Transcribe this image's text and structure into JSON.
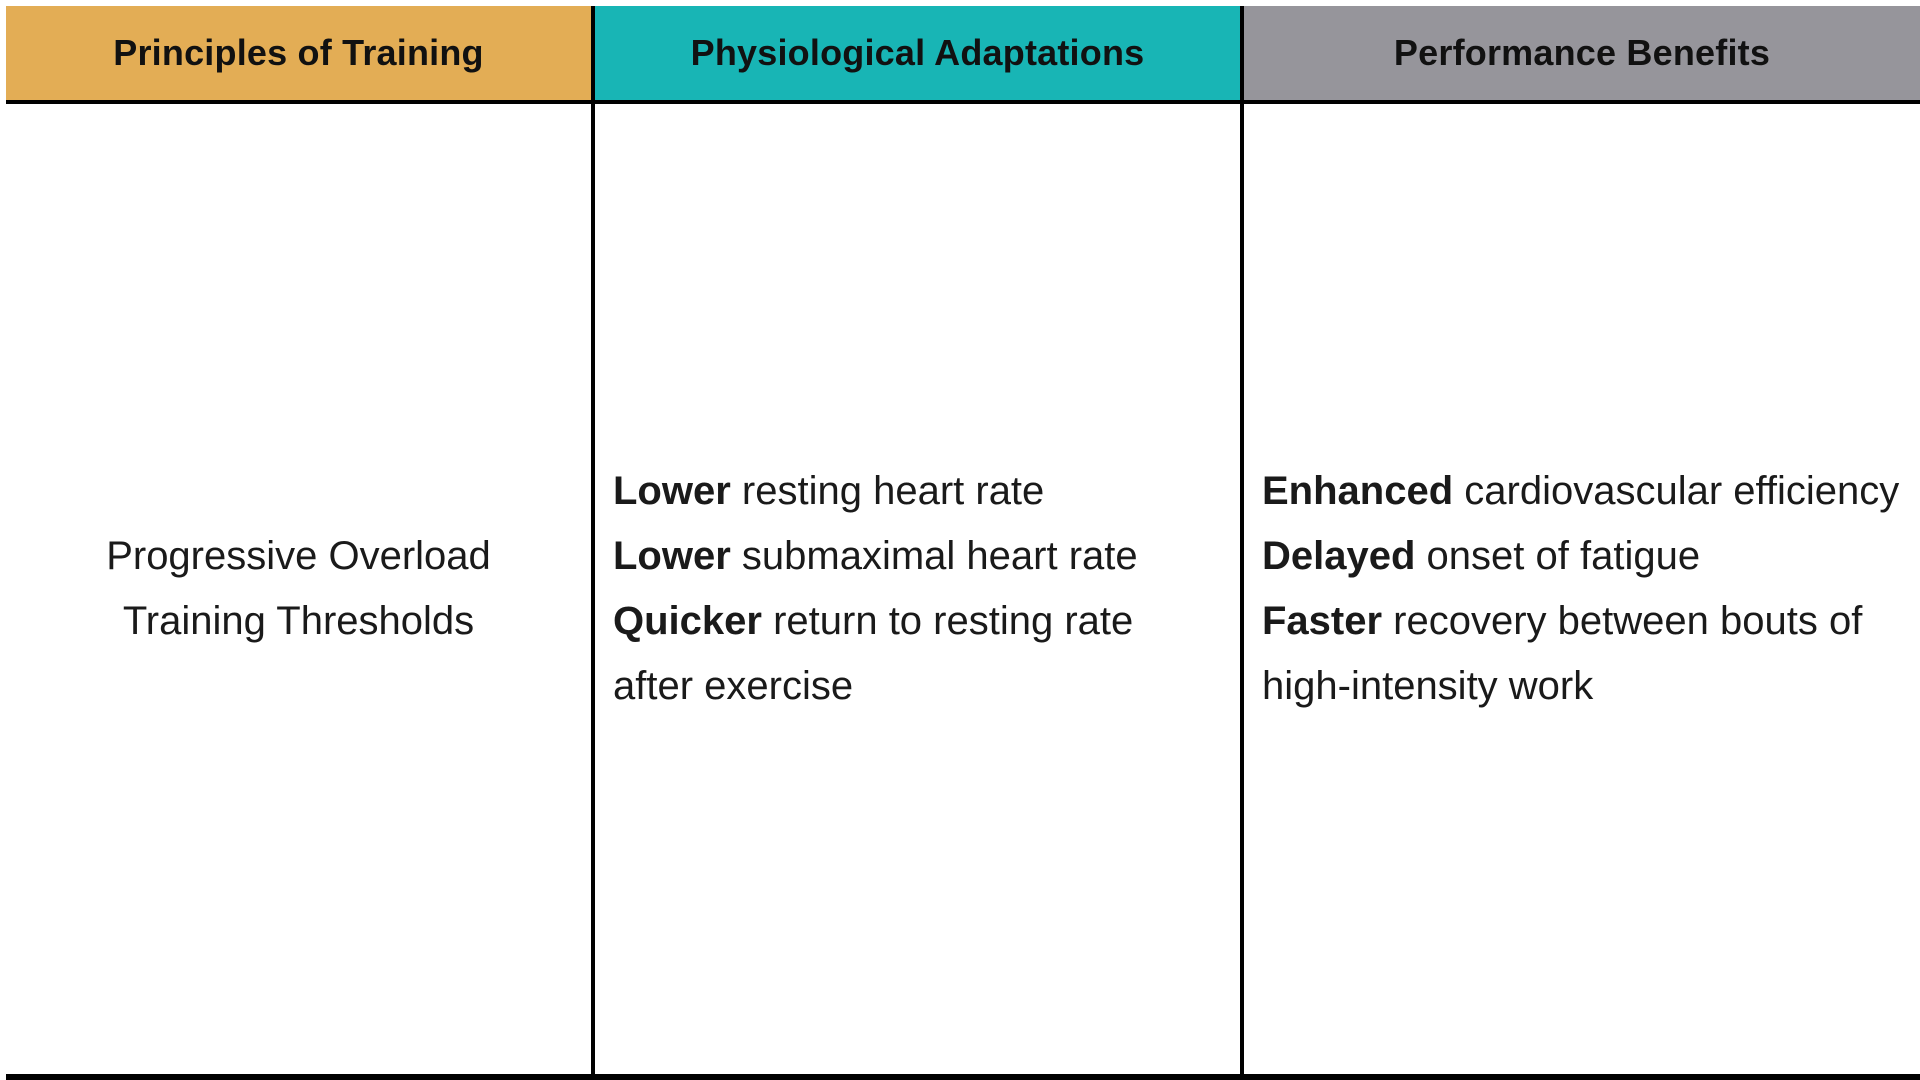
{
  "table": {
    "columns": [
      {
        "label": "Principles of Training",
        "header_bg": "#e3ad55"
      },
      {
        "label": "Physiological Adaptations",
        "header_bg": "#18b5b5"
      },
      {
        "label": "Performance Benefits",
        "header_bg": "#96959b"
      }
    ],
    "row": {
      "principles": {
        "lines": [
          "Progressive Overload",
          "Training Thresholds"
        ]
      },
      "adaptations": [
        {
          "bold": "Lower",
          "rest": " resting heart rate"
        },
        {
          "bold": "Lower",
          "rest": " submaximal heart rate"
        },
        {
          "bold": "Quicker",
          "rest": " return to resting rate after exercise"
        }
      ],
      "benefits": [
        {
          "bold": "Enhanced",
          "rest": " cardiovascular efficiency"
        },
        {
          "bold": "Delayed",
          "rest": " onset of fatigue"
        },
        {
          "bold": "Faster",
          "rest": " recovery between bouts of high-intensity work"
        }
      ]
    },
    "colors": {
      "border": "#000000",
      "body_bg": "#ffffff",
      "text": "#1a1a1a"
    }
  }
}
